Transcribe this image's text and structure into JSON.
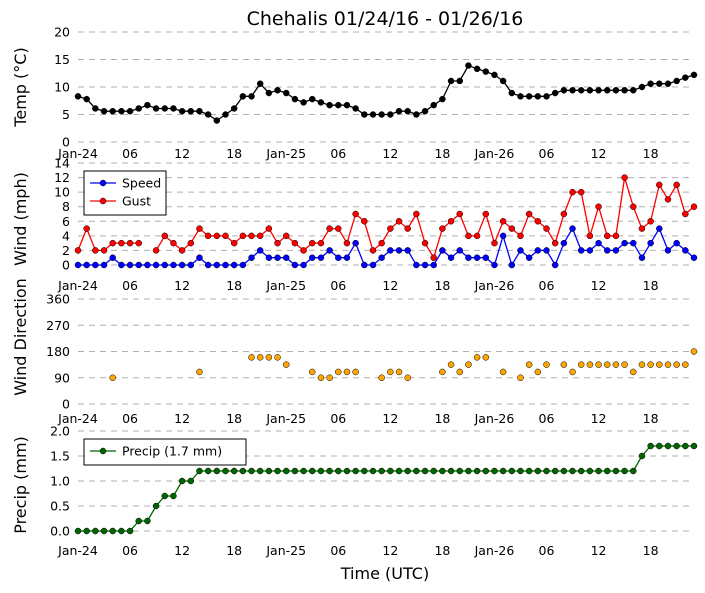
{
  "chart_data": {
    "title": "Chehalis 01/24/16 - 01/26/16",
    "xlabel": "Time (UTC)",
    "x_ticks": [
      "Jan-24",
      "06",
      "12",
      "18",
      "Jan-25",
      "06",
      "12",
      "18",
      "Jan-26",
      "06",
      "12",
      "18"
    ],
    "x_tick_hours": [
      0,
      6,
      12,
      18,
      24,
      30,
      36,
      42,
      48,
      54,
      60,
      66
    ],
    "x_range_hours": [
      0,
      71
    ],
    "panels": [
      {
        "type": "line",
        "ylabel": "Temp (°C)",
        "ylim": [
          0,
          20
        ],
        "yticks": [
          0,
          5,
          10,
          15,
          20
        ],
        "grid": true,
        "series": [
          {
            "color": "#000000",
            "values": [
              8.3,
              7.8,
              6.1,
              5.6,
              5.6,
              5.6,
              5.6,
              6.1,
              6.7,
              6.1,
              6.1,
              6.1,
              5.6,
              5.6,
              5.6,
              5.0,
              3.9,
              5.0,
              6.1,
              8.3,
              8.3,
              10.6,
              8.9,
              9.4,
              8.9,
              7.8,
              7.2,
              7.8,
              7.2,
              6.7,
              6.7,
              6.7,
              6.1,
              5.0,
              5.0,
              5.0,
              5.0,
              5.6,
              5.6,
              5.0,
              5.6,
              6.7,
              7.8,
              11.1,
              11.1,
              13.9,
              13.3,
              12.8,
              12.2,
              11.1,
              8.9,
              8.3,
              8.3,
              8.3,
              8.3,
              8.9,
              9.4,
              9.4,
              9.4,
              9.4,
              9.4,
              9.4,
              9.4,
              9.4,
              9.4,
              10.0,
              10.6,
              10.6,
              10.6,
              11.1,
              11.7,
              12.2
            ]
          }
        ]
      },
      {
        "type": "line",
        "ylabel": "Wind (mph)",
        "ylim": [
          0,
          14
        ],
        "yticks": [
          0,
          2,
          4,
          6,
          8,
          10,
          12,
          14
        ],
        "grid": true,
        "legend": "upper-left",
        "series": [
          {
            "name": "Speed",
            "color": "#0000ff",
            "values": [
              0,
              0,
              0,
              0,
              1,
              0,
              0,
              0,
              0,
              0,
              0,
              0,
              0,
              0,
              1,
              0,
              0,
              0,
              0,
              0,
              1,
              2,
              1,
              1,
              1,
              0,
              0,
              1,
              1,
              2,
              1,
              1,
              3,
              0,
              0,
              1,
              2,
              2,
              2,
              0,
              0,
              0,
              2,
              1,
              2,
              1,
              1,
              1,
              0,
              4,
              0,
              2,
              1,
              2,
              2,
              0,
              3,
              5,
              2,
              2,
              3,
              2,
              2,
              3,
              3,
              1,
              3,
              5,
              2,
              3,
              2,
              1
            ]
          },
          {
            "name": "Gust",
            "color": "#ff0000",
            "values": [
              2,
              5,
              2,
              2,
              3,
              3,
              3,
              3,
              null,
              2,
              4,
              3,
              2,
              3,
              5,
              4,
              4,
              4,
              3,
              4,
              4,
              4,
              5,
              3,
              4,
              3,
              2,
              3,
              3,
              5,
              5,
              3,
              7,
              6,
              2,
              3,
              5,
              6,
              5,
              7,
              3,
              1,
              5,
              6,
              7,
              4,
              4,
              7,
              3,
              6,
              5,
              4,
              7,
              6,
              5,
              3,
              7,
              10,
              10,
              4,
              8,
              4,
              4,
              12,
              8,
              5,
              6,
              11,
              9,
              11,
              7,
              8
            ]
          }
        ]
      },
      {
        "type": "scatter",
        "ylabel": "Wind Direction",
        "ylim": [
          0,
          360
        ],
        "yticks": [
          0,
          90,
          180,
          270,
          360
        ],
        "grid": true,
        "series": [
          {
            "color": "#ffa500",
            "values": [
              null,
              null,
              null,
              null,
              90,
              null,
              null,
              null,
              null,
              null,
              null,
              null,
              null,
              null,
              110,
              null,
              null,
              null,
              null,
              null,
              160,
              160,
              160,
              160,
              135,
              null,
              null,
              110,
              90,
              90,
              110,
              110,
              110,
              null,
              null,
              90,
              110,
              110,
              90,
              null,
              null,
              null,
              110,
              135,
              110,
              135,
              160,
              160,
              null,
              110,
              null,
              90,
              135,
              110,
              135,
              null,
              135,
              110,
              135,
              135,
              135,
              135,
              135,
              135,
              110,
              135,
              135,
              135,
              135,
              135,
              135,
              180
            ]
          }
        ]
      },
      {
        "type": "line",
        "ylabel": "Precip (mm)",
        "ylim": [
          0,
          2.0
        ],
        "yticks": [
          "0.0",
          "0.5",
          "1.0",
          "1.5",
          "2.0"
        ],
        "grid": true,
        "legend": "upper-left",
        "series": [
          {
            "name": "Precip (1.7 mm)",
            "color": "#006400",
            "values": [
              0,
              0,
              0,
              0,
              0,
              0,
              0,
              0.2,
              0.2,
              0.5,
              0.7,
              0.7,
              1.0,
              1.0,
              1.2,
              1.2,
              1.2,
              1.2,
              1.2,
              1.2,
              1.2,
              1.2,
              1.2,
              1.2,
              1.2,
              1.2,
              1.2,
              1.2,
              1.2,
              1.2,
              1.2,
              1.2,
              1.2,
              1.2,
              1.2,
              1.2,
              1.2,
              1.2,
              1.2,
              1.2,
              1.2,
              1.2,
              1.2,
              1.2,
              1.2,
              1.2,
              1.2,
              1.2,
              1.2,
              1.2,
              1.2,
              1.2,
              1.2,
              1.2,
              1.2,
              1.2,
              1.2,
              1.2,
              1.2,
              1.2,
              1.2,
              1.2,
              1.2,
              1.2,
              1.2,
              1.5,
              1.7,
              1.7,
              1.7,
              1.7,
              1.7,
              1.7
            ]
          }
        ]
      }
    ]
  }
}
